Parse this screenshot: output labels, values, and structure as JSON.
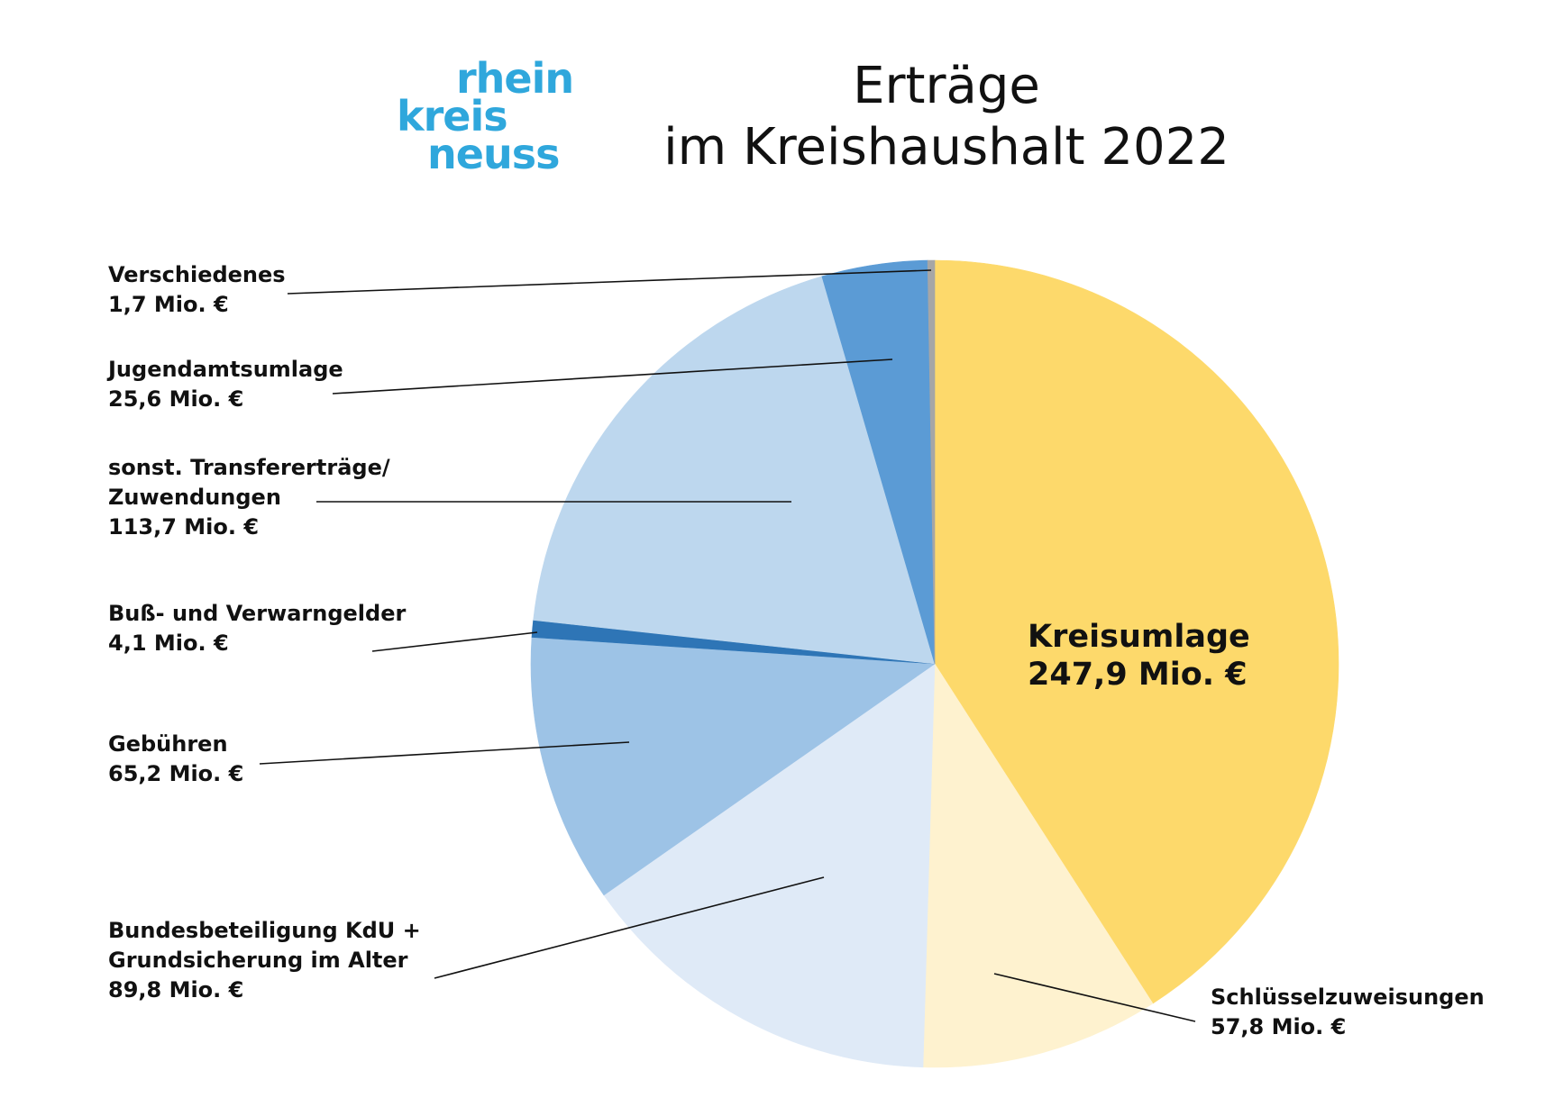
{
  "logo": {
    "line1": "rhein",
    "line2": "kreis",
    "line3": "neuss"
  },
  "title": {
    "line1": "Erträge",
    "line2": "im Kreishaushalt 2022"
  },
  "colors": {
    "logo": "#2fa7dc",
    "kreisumlage": "#fdd96b",
    "schluesselzuweisungen": "#fef2cf",
    "bundesbeteiligung": "#dfeaf7",
    "gebuehren": "#9dc3e6",
    "bussgelder": "#2e75b6",
    "transfer": "#bdd7ee",
    "jugendamtsumlage": "#5b9bd5",
    "verschiedenes": "#a6a6a6"
  },
  "chart_data": {
    "type": "pie",
    "unit": "Mio. €",
    "slices": [
      {
        "name": "Kreisumlage",
        "value": 247.9,
        "value_label": "247,9 Mio. €",
        "color": "#fdd96b"
      },
      {
        "name": "Schlüsselzuweisungen",
        "value": 57.8,
        "value_label": "57,8 Mio. €",
        "color": "#fef2cf"
      },
      {
        "name": "Bundesbeteiligung KdU + Grundsicherung im Alter",
        "name_lines": [
          "Bundesbeteiligung KdU +",
          "Grundsicherung im Alter"
        ],
        "value": 89.8,
        "value_label": "89,8 Mio. €",
        "color": "#dfeaf7"
      },
      {
        "name": "Gebühren",
        "value": 65.2,
        "value_label": "65,2 Mio. €",
        "color": "#9dc3e6"
      },
      {
        "name": "Buß- und Verwarngelder",
        "value": 4.1,
        "value_label": "4,1 Mio. €",
        "color": "#2e75b6"
      },
      {
        "name": "sonst. Transfererträge/ Zuwendungen",
        "name_lines": [
          "sonst. Transfererträge/",
          "Zuwendungen"
        ],
        "value": 113.7,
        "value_label": "113,7 Mio. €",
        "color": "#bdd7ee"
      },
      {
        "name": "Jugendamtsumlage",
        "value": 25.6,
        "value_label": "25,6 Mio. €",
        "color": "#5b9bd5"
      },
      {
        "name": "Verschiedenes",
        "value": 1.7,
        "value_label": "1,7 Mio. €",
        "color": "#a6a6a6"
      }
    ]
  }
}
